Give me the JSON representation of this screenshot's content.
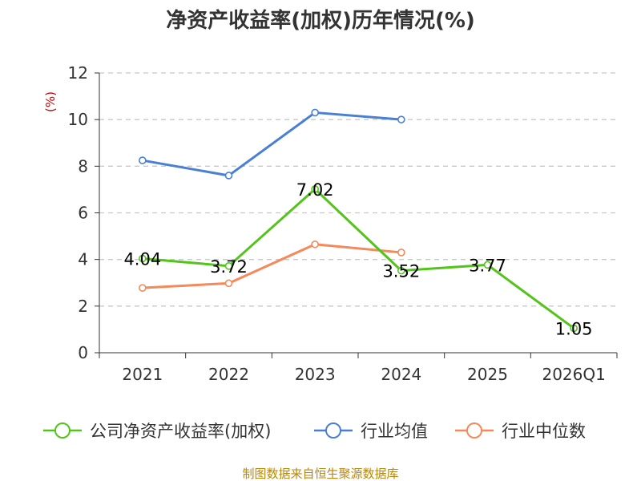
{
  "chart_data": {
    "type": "line",
    "title": "净资产收益率(加权)历年情况(%)",
    "ylabel": "(%)",
    "categories": [
      "2021",
      "2022",
      "2023",
      "2024",
      "2025",
      "2026Q1"
    ],
    "ylim": [
      0,
      12
    ],
    "yticks": [
      "0",
      "2",
      "4",
      "6",
      "8",
      "10",
      "12"
    ],
    "grid": true,
    "legend_position": "bottom",
    "series": [
      {
        "name": "公司净资产收益率(加权)",
        "color": "#52c41a",
        "values": [
          4.04,
          3.72,
          7.02,
          3.52,
          3.77,
          1.05
        ],
        "labels": [
          "4.04",
          "3.72",
          "7.02",
          "3.52",
          "3.77",
          "1.05"
        ]
      },
      {
        "name": "行业均值",
        "color": "#4a7fd6",
        "values": [
          8.25,
          7.6,
          10.3,
          10.0,
          null,
          null
        ]
      },
      {
        "name": "行业中位数",
        "color": "#f5895a",
        "values": [
          2.78,
          2.98,
          4.65,
          4.3,
          null,
          null
        ]
      }
    ]
  },
  "footer": {
    "source": "制图数据来自恒生聚源数据库"
  }
}
